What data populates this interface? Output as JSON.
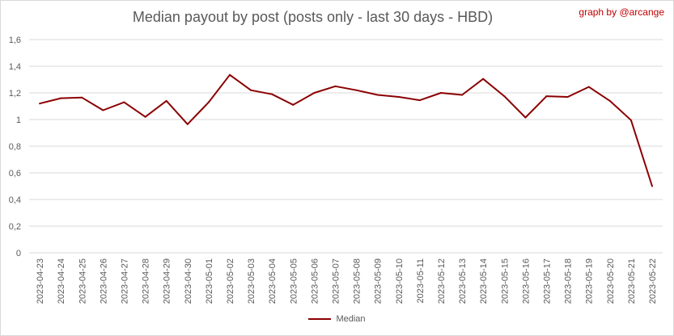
{
  "credit": "graph by @arcange",
  "colors": {
    "series": "#8b0000",
    "grid": "#d9d9d9",
    "text": "#595959",
    "credit": "#c00000"
  },
  "chart_data": {
    "type": "line",
    "title": "Median payout by post (posts only - last 30 days - HBD)",
    "xlabel": "",
    "ylabel": "",
    "ylim": [
      0,
      1.6
    ],
    "yticks": [
      "0",
      "0,2",
      "0,4",
      "0,6",
      "0,8",
      "1",
      "1,2",
      "1,4",
      "1,6"
    ],
    "grid": "horizontal",
    "legend_position": "bottom",
    "x": [
      "2023-04-23",
      "2023-04-24",
      "2023-04-25",
      "2023-04-26",
      "2023-04-27",
      "2023-04-28",
      "2023-04-29",
      "2023-04-30",
      "2023-05-01",
      "2023-05-02",
      "2023-05-03",
      "2023-05-04",
      "2023-05-05",
      "2023-05-06",
      "2023-05-07",
      "2023-05-08",
      "2023-05-09",
      "2023-05-10",
      "2023-05-11",
      "2023-05-12",
      "2023-05-13",
      "2023-05-14",
      "2023-05-15",
      "2023-05-16",
      "2023-05-17",
      "2023-05-18",
      "2023-05-19",
      "2023-05-20",
      "2023-05-21",
      "2023-05-22"
    ],
    "series": [
      {
        "name": "Median",
        "values": [
          1.12,
          1.16,
          1.165,
          1.07,
          1.13,
          1.02,
          1.14,
          0.965,
          1.13,
          1.335,
          1.22,
          1.19,
          1.11,
          1.2,
          1.25,
          1.22,
          1.185,
          1.17,
          1.145,
          1.2,
          1.185,
          1.305,
          1.175,
          1.015,
          1.175,
          1.17,
          1.245,
          1.14,
          0.995,
          0.5
        ]
      }
    ]
  }
}
